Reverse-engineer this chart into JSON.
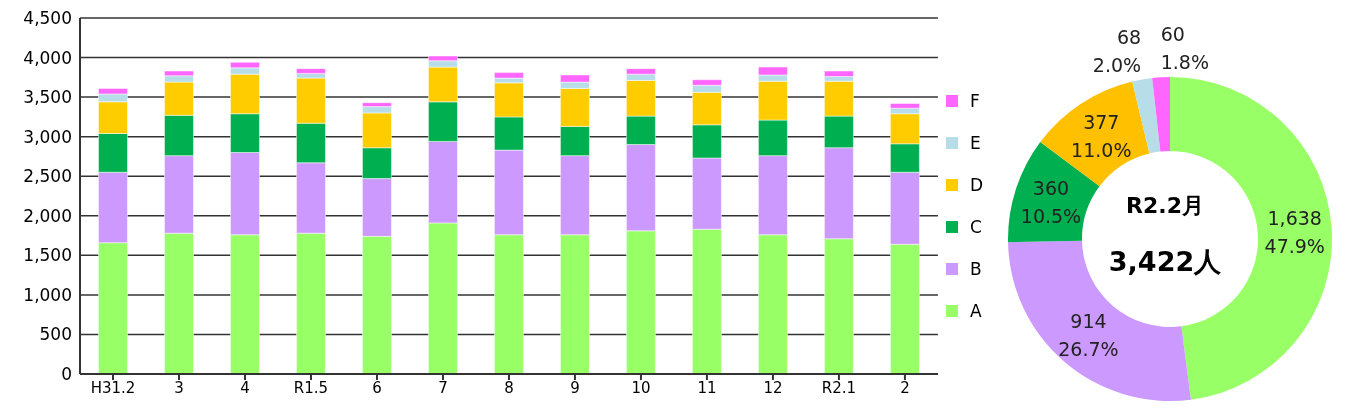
{
  "chart_data": [
    {
      "type": "bar",
      "stacked": true,
      "categories": [
        "H31.2",
        "3",
        "4",
        "R1.5",
        "6",
        "7",
        "8",
        "9",
        "10",
        "11",
        "12",
        "R2.1",
        "2"
      ],
      "series": [
        {
          "name": "A",
          "color": "#99ff66",
          "values": [
            1660,
            1780,
            1760,
            1780,
            1740,
            1910,
            1760,
            1760,
            1810,
            1830,
            1760,
            1710,
            1640
          ]
        },
        {
          "name": "B",
          "color": "#cc99ff",
          "values": [
            890,
            980,
            1040,
            890,
            730,
            1030,
            1070,
            1000,
            1090,
            900,
            1000,
            1150,
            910
          ]
        },
        {
          "name": "C",
          "color": "#00b050",
          "values": [
            490,
            510,
            490,
            500,
            390,
            500,
            420,
            370,
            360,
            420,
            450,
            400,
            360
          ]
        },
        {
          "name": "D",
          "color": "#ffcc00",
          "values": [
            400,
            420,
            500,
            570,
            440,
            440,
            430,
            480,
            450,
            410,
            490,
            440,
            380
          ]
        },
        {
          "name": "E",
          "color": "#b7dee8",
          "values": [
            100,
            80,
            80,
            60,
            80,
            80,
            60,
            80,
            80,
            90,
            80,
            60,
            70
          ]
        },
        {
          "name": "F",
          "color": "#ff66ff",
          "values": [
            70,
            60,
            70,
            60,
            50,
            60,
            70,
            90,
            70,
            70,
            100,
            70,
            60
          ]
        }
      ],
      "ylim": [
        0,
        4500
      ],
      "yticks": [
        {
          "value": 0,
          "label": "0"
        },
        {
          "value": 500,
          "label": "500"
        },
        {
          "value": 1000,
          "label": "1,000"
        },
        {
          "value": 1500,
          "label": "1,500"
        },
        {
          "value": 2000,
          "label": "2,000"
        },
        {
          "value": 2500,
          "label": "2,500"
        },
        {
          "value": 3000,
          "label": "3,000"
        },
        {
          "value": 3500,
          "label": "3,500"
        },
        {
          "value": 4000,
          "label": "4,000"
        },
        {
          "value": 4500,
          "label": "4,500"
        }
      ],
      "grid": "y",
      "legend": "right"
    },
    {
      "type": "donut",
      "categories": [
        null,
        null,
        null,
        null,
        null,
        null
      ],
      "values": [
        1638,
        914,
        360,
        377,
        68,
        60
      ],
      "colors": [
        "#99ff66",
        "#cc99ff",
        "#00b050",
        "#ffc000",
        "#b7dee8",
        "#ff66ff"
      ],
      "value_labels": [
        "1,638\n47.9%",
        "914\n26.7%",
        "360\n10.5%",
        "377\n11.0%",
        "68\n2.0%",
        "60\n1.8%"
      ],
      "annotations": [
        "R2.2月",
        "3,422人"
      ]
    }
  ]
}
